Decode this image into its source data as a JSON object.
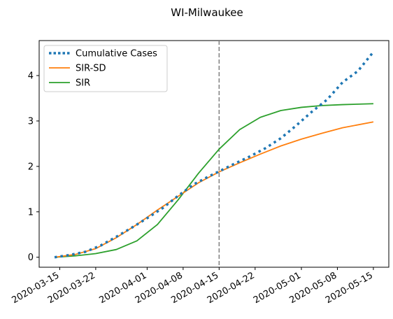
{
  "chart_data": {
    "type": "line",
    "title": "WI-Milwaukee",
    "xlabel": "",
    "ylabel": "",
    "x_start_date": "2020-03-14",
    "x_end_date": "2020-05-15",
    "xlim": [
      "2020-03-11",
      "2020-05-18"
    ],
    "ylim": [
      -0.22,
      4.77
    ],
    "x_ticks": [
      "2020-03-15",
      "2020-03-22",
      "2020-04-01",
      "2020-04-08",
      "2020-04-15",
      "2020-04-22",
      "2020-05-01",
      "2020-05-08",
      "2020-05-15"
    ],
    "y_ticks": [
      0,
      1,
      2,
      3,
      4
    ],
    "vline": {
      "x": "2020-04-15",
      "style": "dashed",
      "color": "#7f7f7f"
    },
    "legend_position": "upper-left",
    "grid": false,
    "series": [
      {
        "name": "Cumulative Cases",
        "style": "dotted",
        "color": "#1f77b4",
        "x": [
          "2020-03-14",
          "2020-03-17",
          "2020-03-20",
          "2020-03-23",
          "2020-03-26",
          "2020-03-29",
          "2020-04-01",
          "2020-04-04",
          "2020-04-07",
          "2020-04-10",
          "2020-04-13",
          "2020-04-15",
          "2020-04-18",
          "2020-04-21",
          "2020-04-24",
          "2020-04-27",
          "2020-04-30",
          "2020-05-03",
          "2020-05-06",
          "2020-05-09",
          "2020-05-12",
          "2020-05-15"
        ],
        "values": [
          0.0,
          0.05,
          0.12,
          0.26,
          0.45,
          0.65,
          0.86,
          1.08,
          1.35,
          1.6,
          1.78,
          1.89,
          2.06,
          2.22,
          2.4,
          2.62,
          2.9,
          3.2,
          3.47,
          3.85,
          4.1,
          4.52
        ]
      },
      {
        "name": "SIR-SD",
        "style": "solid",
        "color": "#ff7f0e",
        "x": [
          "2020-03-14",
          "2020-03-18",
          "2020-03-22",
          "2020-03-26",
          "2020-03-30",
          "2020-04-03",
          "2020-04-07",
          "2020-04-11",
          "2020-04-15",
          "2020-04-19",
          "2020-04-23",
          "2020-04-27",
          "2020-05-01",
          "2020-05-05",
          "2020-05-09",
          "2020-05-15"
        ],
        "values": [
          0.0,
          0.06,
          0.19,
          0.43,
          0.72,
          1.04,
          1.34,
          1.64,
          1.88,
          2.08,
          2.27,
          2.45,
          2.6,
          2.73,
          2.85,
          2.98
        ]
      },
      {
        "name": "SIR",
        "style": "solid",
        "color": "#2ca02c",
        "x": [
          "2020-03-14",
          "2020-03-18",
          "2020-03-22",
          "2020-03-26",
          "2020-03-30",
          "2020-04-03",
          "2020-04-07",
          "2020-04-11",
          "2020-04-15",
          "2020-04-19",
          "2020-04-23",
          "2020-04-27",
          "2020-05-01",
          "2020-05-05",
          "2020-05-09",
          "2020-05-15"
        ],
        "values": [
          0.0,
          0.03,
          0.08,
          0.17,
          0.36,
          0.72,
          1.26,
          1.85,
          2.38,
          2.81,
          3.08,
          3.23,
          3.3,
          3.34,
          3.36,
          3.38
        ]
      }
    ]
  }
}
